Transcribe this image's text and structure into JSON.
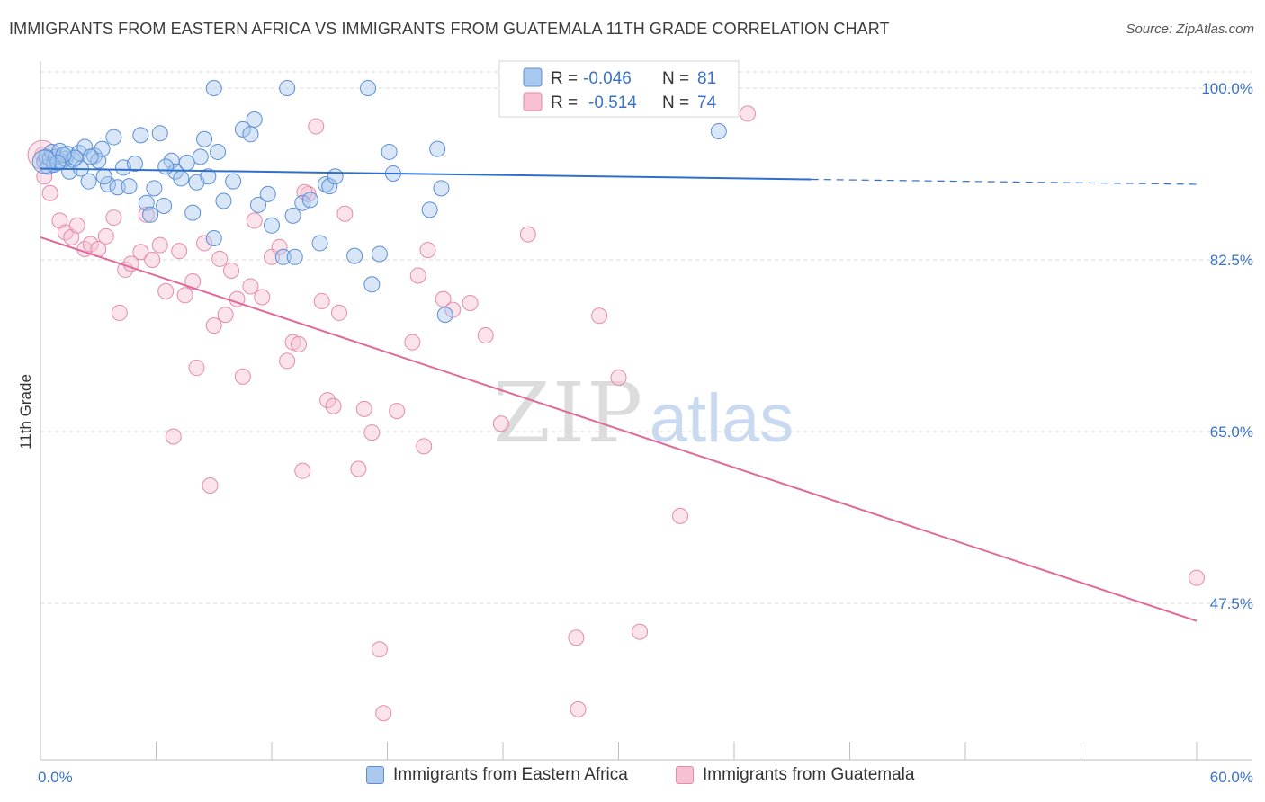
{
  "title": "IMMIGRANTS FROM EASTERN AFRICA VS IMMIGRANTS FROM GUATEMALA 11TH GRADE CORRELATION CHART",
  "source": "Source: ZipAtlas.com",
  "watermark": {
    "zip": "ZIP",
    "atlas": "atlas"
  },
  "colors": {
    "blue_fill": "#a9c8ee",
    "blue_stroke": "#5a8fd6",
    "blue_line": "#2f6fcc",
    "pink_fill": "#f7c1d3",
    "pink_stroke": "#e58aab",
    "pink_line": "#e0689a",
    "axis_label": "#3a72c9",
    "grid": "#d9d9d9"
  },
  "legend_top": {
    "blue": {
      "r_label": "R = ",
      "r_value": "-0.046",
      "n_label": "N = ",
      "n_value": "81"
    },
    "pink": {
      "r_label": "R = ",
      "r_value": "-0.514",
      "n_label": "N = ",
      "n_value": "74"
    }
  },
  "legend_bottom": {
    "blue_label": "Immigrants from Eastern Africa",
    "pink_label": "Immigrants from Guatemala"
  },
  "chart_data": {
    "type": "scatter",
    "title": "IMMIGRANTS FROM EASTERN AFRICA VS IMMIGRANTS FROM GUATEMALA 11TH GRADE CORRELATION CHART",
    "xlabel": "",
    "ylabel": "11th Grade",
    "xlim": [
      0,
      60
    ],
    "ylim": [
      32,
      102
    ],
    "x_tick_labels": [
      "0.0%",
      "60.0%"
    ],
    "y_ticks": [
      47.5,
      65.0,
      82.5,
      100.0
    ],
    "y_tick_labels": [
      "47.5%",
      "65.0%",
      "82.5%",
      "100.0%"
    ],
    "grid": true,
    "series": [
      {
        "name": "Immigrants from Eastern Africa",
        "color": "#a9c8ee",
        "trend": {
          "x0": 0,
          "y0": 91.8,
          "x1": 40,
          "y1": 90.7,
          "dash_to_x": 60,
          "dash_to_y": 90.2
        },
        "points": [
          [
            0.2,
            92.5
          ],
          [
            0.3,
            93.0
          ],
          [
            0.4,
            92.0
          ],
          [
            0.5,
            92.8
          ],
          [
            0.6,
            93.5
          ],
          [
            0.7,
            92.2
          ],
          [
            0.8,
            93.0
          ],
          [
            1.0,
            93.6
          ],
          [
            1.1,
            92.5
          ],
          [
            1.3,
            92.8
          ],
          [
            1.4,
            93.3
          ],
          [
            1.5,
            91.5
          ],
          [
            1.7,
            92.7
          ],
          [
            2.0,
            93.4
          ],
          [
            2.1,
            91.8
          ],
          [
            2.3,
            94.0
          ],
          [
            2.5,
            90.5
          ],
          [
            2.8,
            93.1
          ],
          [
            3.0,
            92.6
          ],
          [
            3.2,
            93.8
          ],
          [
            3.5,
            90.2
          ],
          [
            3.8,
            95.0
          ],
          [
            4.0,
            89.9
          ],
          [
            4.3,
            91.9
          ],
          [
            4.6,
            90.0
          ],
          [
            4.9,
            92.3
          ],
          [
            5.2,
            95.2
          ],
          [
            5.5,
            88.3
          ],
          [
            5.7,
            87.1
          ],
          [
            5.9,
            89.8
          ],
          [
            6.2,
            95.4
          ],
          [
            6.4,
            88.0
          ],
          [
            6.8,
            92.6
          ],
          [
            7.0,
            91.5
          ],
          [
            7.3,
            90.8
          ],
          [
            7.6,
            92.4
          ],
          [
            7.9,
            87.3
          ],
          [
            8.1,
            90.4
          ],
          [
            8.3,
            93.0
          ],
          [
            8.5,
            94.8
          ],
          [
            8.7,
            91.0
          ],
          [
            9.0,
            84.7
          ],
          [
            9.2,
            93.5
          ],
          [
            9.5,
            88.5
          ],
          [
            10.0,
            90.5
          ],
          [
            10.5,
            95.8
          ],
          [
            10.9,
            95.3
          ],
          [
            11.3,
            88.1
          ],
          [
            11.8,
            89.2
          ],
          [
            12.0,
            86.0
          ],
          [
            12.6,
            82.8
          ],
          [
            11.1,
            96.8
          ],
          [
            13.1,
            87.0
          ],
          [
            13.6,
            88.3
          ],
          [
            14.0,
            88.6
          ],
          [
            14.5,
            84.2
          ],
          [
            14.8,
            90.2
          ],
          [
            15.0,
            90.0
          ],
          [
            15.3,
            91.0
          ],
          [
            16.3,
            82.9
          ],
          [
            17.2,
            80.0
          ],
          [
            17.6,
            83.1
          ],
          [
            18.1,
            93.5
          ],
          [
            18.3,
            91.3
          ],
          [
            17.0,
            100.0
          ],
          [
            9.0,
            100.0
          ],
          [
            12.8,
            100.0
          ],
          [
            20.2,
            87.6
          ],
          [
            20.6,
            93.8
          ],
          [
            20.8,
            89.8
          ],
          [
            21.0,
            76.9
          ],
          [
            24.5,
            100.0
          ],
          [
            29.0,
            100.0
          ],
          [
            35.2,
            95.6
          ],
          [
            13.2,
            82.8
          ],
          [
            6.5,
            92.0
          ],
          [
            3.3,
            91.0
          ],
          [
            1.8,
            92.9
          ],
          [
            1.2,
            93.2
          ],
          [
            0.9,
            92.4
          ],
          [
            2.6,
            93.0
          ]
        ]
      },
      {
        "name": "Immigrants from Guatemala",
        "color": "#f7c1d3",
        "trend": {
          "x0": 0,
          "y0": 84.8,
          "x1": 60,
          "y1": 45.7
        },
        "points": [
          [
            0.1,
            93.2
          ],
          [
            0.2,
            91.0
          ],
          [
            0.5,
            89.3
          ],
          [
            1.0,
            86.5
          ],
          [
            1.3,
            85.3
          ],
          [
            1.6,
            84.8
          ],
          [
            1.9,
            86.0
          ],
          [
            2.3,
            83.6
          ],
          [
            2.6,
            84.1
          ],
          [
            3.0,
            83.6
          ],
          [
            3.4,
            84.9
          ],
          [
            3.8,
            86.8
          ],
          [
            4.1,
            77.1
          ],
          [
            4.4,
            81.5
          ],
          [
            4.7,
            82.1
          ],
          [
            5.2,
            83.3
          ],
          [
            5.5,
            87.1
          ],
          [
            5.8,
            82.5
          ],
          [
            6.2,
            84.0
          ],
          [
            6.5,
            79.3
          ],
          [
            6.9,
            64.5
          ],
          [
            7.2,
            83.4
          ],
          [
            7.5,
            78.9
          ],
          [
            7.9,
            80.3
          ],
          [
            8.1,
            71.5
          ],
          [
            8.5,
            84.2
          ],
          [
            8.8,
            59.5
          ],
          [
            9.0,
            75.8
          ],
          [
            9.3,
            82.6
          ],
          [
            9.6,
            76.9
          ],
          [
            9.9,
            81.4
          ],
          [
            10.2,
            78.5
          ],
          [
            10.5,
            70.6
          ],
          [
            10.9,
            79.8
          ],
          [
            11.1,
            86.5
          ],
          [
            11.5,
            78.7
          ],
          [
            12.0,
            82.8
          ],
          [
            12.4,
            83.8
          ],
          [
            12.8,
            72.2
          ],
          [
            13.1,
            74.1
          ],
          [
            13.4,
            73.9
          ],
          [
            13.6,
            61.0
          ],
          [
            13.9,
            89.2
          ],
          [
            14.3,
            96.1
          ],
          [
            14.6,
            78.3
          ],
          [
            14.9,
            68.2
          ],
          [
            15.2,
            67.6
          ],
          [
            15.5,
            77.1
          ],
          [
            15.8,
            87.2
          ],
          [
            16.5,
            61.2
          ],
          [
            16.8,
            67.3
          ],
          [
            17.2,
            64.9
          ],
          [
            17.6,
            42.8
          ],
          [
            17.8,
            36.3
          ],
          [
            18.5,
            67.1
          ],
          [
            19.3,
            74.1
          ],
          [
            19.6,
            80.9
          ],
          [
            19.9,
            63.5
          ],
          [
            20.1,
            83.5
          ],
          [
            20.9,
            78.5
          ],
          [
            21.4,
            77.4
          ],
          [
            22.3,
            78.1
          ],
          [
            23.1,
            74.8
          ],
          [
            23.9,
            65.8
          ],
          [
            25.3,
            85.1
          ],
          [
            27.8,
            44.0
          ],
          [
            27.9,
            36.7
          ],
          [
            29.0,
            76.8
          ],
          [
            30.0,
            70.5
          ],
          [
            31.1,
            44.6
          ],
          [
            33.2,
            56.4
          ],
          [
            36.7,
            97.4
          ],
          [
            60.0,
            50.1
          ],
          [
            13.7,
            89.4
          ]
        ]
      }
    ]
  }
}
